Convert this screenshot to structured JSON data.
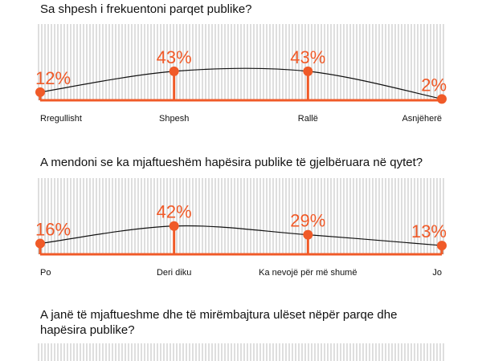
{
  "chart_data": [
    {
      "type": "line",
      "title": "Sa shpesh i frekuentoni parqet publike?",
      "categories": [
        "Rregullisht",
        "Shpesh",
        "Rallë",
        "Asnjëherë"
      ],
      "values": [
        12,
        43,
        43,
        2
      ],
      "value_labels": [
        "12%",
        "43%",
        "43%",
        "2%"
      ],
      "color": "#f05a28"
    },
    {
      "type": "line",
      "title": "A mendoni se ka mjaftueshëm hapësira publike të gjelbëruara në qytet?",
      "categories": [
        "Po",
        "Deri diku",
        "Ka nevojë për më shumë",
        "Jo"
      ],
      "values": [
        16,
        42,
        29,
        13
      ],
      "value_labels": [
        "16%",
        "42%",
        "29%",
        "13%"
      ],
      "color": "#f05a28"
    },
    {
      "type": "line",
      "title": "A janë të mjaftueshme dhe të mirëmbajtura ulëset nëpër parqe dhe hapësira publike?"
    }
  ]
}
